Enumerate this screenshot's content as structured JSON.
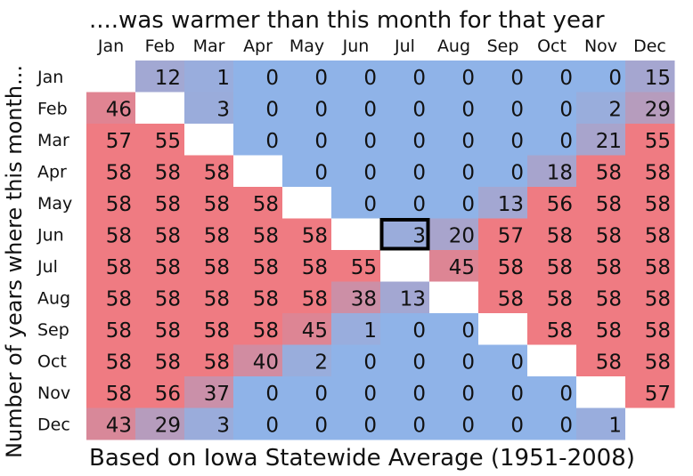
{
  "chart_data": {
    "type": "heatmap",
    "title": "....was warmer than this month for that year",
    "ylabel": "Number of years where this month...",
    "footer": "Based on Iowa Statewide Average (1951-2008)",
    "columns": [
      "Jan",
      "Feb",
      "Mar",
      "Apr",
      "May",
      "Jun",
      "Jul",
      "Aug",
      "Sep",
      "Oct",
      "Nov",
      "Dec"
    ],
    "rows": [
      "Jan",
      "Feb",
      "Mar",
      "Apr",
      "May",
      "Jun",
      "Jul",
      "Aug",
      "Sep",
      "Oct",
      "Nov",
      "Dec"
    ],
    "values": [
      [
        null,
        12,
        1,
        0,
        0,
        0,
        0,
        0,
        0,
        0,
        0,
        15
      ],
      [
        46,
        null,
        3,
        0,
        0,
        0,
        0,
        0,
        0,
        0,
        2,
        29
      ],
      [
        57,
        55,
        null,
        0,
        0,
        0,
        0,
        0,
        0,
        0,
        21,
        55
      ],
      [
        58,
        58,
        58,
        null,
        0,
        0,
        0,
        0,
        0,
        18,
        58,
        58
      ],
      [
        58,
        58,
        58,
        58,
        null,
        0,
        0,
        0,
        13,
        56,
        58,
        58
      ],
      [
        58,
        58,
        58,
        58,
        58,
        null,
        3,
        20,
        57,
        58,
        58,
        58
      ],
      [
        58,
        58,
        58,
        58,
        58,
        55,
        null,
        45,
        58,
        58,
        58,
        58
      ],
      [
        58,
        58,
        58,
        58,
        58,
        38,
        13,
        null,
        58,
        58,
        58,
        58
      ],
      [
        58,
        58,
        58,
        58,
        45,
        1,
        0,
        0,
        null,
        58,
        58,
        58
      ],
      [
        58,
        58,
        58,
        40,
        2,
        0,
        0,
        0,
        0,
        null,
        58,
        58
      ],
      [
        58,
        56,
        37,
        0,
        0,
        0,
        0,
        0,
        0,
        0,
        null,
        57
      ],
      [
        43,
        29,
        3,
        0,
        0,
        0,
        0,
        0,
        0,
        0,
        1,
        null
      ]
    ],
    "range": [
      0,
      58
    ],
    "highlight": {
      "row": 5,
      "col": 6
    },
    "colors": {
      "low": "#8fb3e8",
      "high": "#ef7b82",
      "mid": "#a8a4cc",
      "diagonal": "#ffffff",
      "highlight_border": "#000000"
    }
  }
}
